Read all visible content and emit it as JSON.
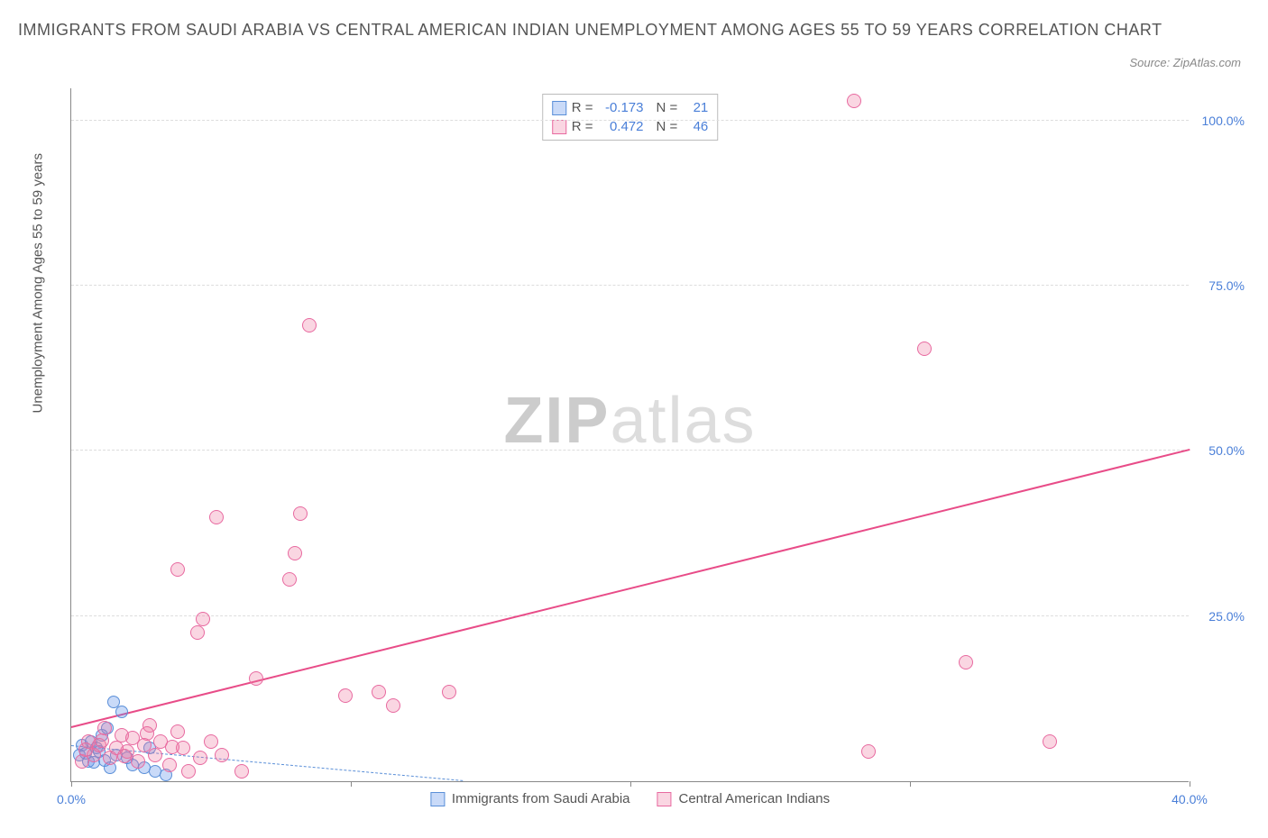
{
  "title": "IMMIGRANTS FROM SAUDI ARABIA VS CENTRAL AMERICAN INDIAN UNEMPLOYMENT AMONG AGES 55 TO 59 YEARS CORRELATION CHART",
  "source": "Source: ZipAtlas.com",
  "watermark_a": "ZIP",
  "watermark_b": "atlas",
  "chart": {
    "type": "scatter",
    "y_axis_label": "Unemployment Among Ages 55 to 59 years",
    "xlim": [
      0,
      40
    ],
    "ylim": [
      0,
      105
    ],
    "x_ticks": [
      0,
      10,
      20,
      30,
      40
    ],
    "x_tick_labels": [
      "0.0%",
      "",
      "",
      "",
      "40.0%"
    ],
    "y_ticks": [
      25,
      50,
      75,
      100
    ],
    "y_tick_labels": [
      "25.0%",
      "50.0%",
      "75.0%",
      "100.0%"
    ],
    "background_color": "#ffffff",
    "grid_color": "#dddddd",
    "axis_color": "#888888",
    "tick_label_color": "#4a7fd8",
    "title_color": "#555555",
    "series": [
      {
        "name": "Immigrants from Saudi Arabia",
        "marker_fill": "rgba(100,150,235,0.35)",
        "marker_stroke": "#5a8fd8",
        "marker_radius": 7,
        "trend_color": "#5a8fd8",
        "trend_dash": "6,4",
        "trend_width": 1.5,
        "trend_from": [
          0,
          5.3
        ],
        "trend_to": [
          14,
          0
        ],
        "corr_R": "-0.173",
        "corr_N": "21",
        "points": [
          [
            0.3,
            4.0
          ],
          [
            0.4,
            5.5
          ],
          [
            0.5,
            4.2
          ],
          [
            0.6,
            3.0
          ],
          [
            0.7,
            6.0
          ],
          [
            0.8,
            2.8
          ],
          [
            0.9,
            5.0
          ],
          [
            1.0,
            4.5
          ],
          [
            1.1,
            7.0
          ],
          [
            1.2,
            3.2
          ],
          [
            1.3,
            8.0
          ],
          [
            1.4,
            2.0
          ],
          [
            1.5,
            12.0
          ],
          [
            1.6,
            4.0
          ],
          [
            1.8,
            10.5
          ],
          [
            2.0,
            3.5
          ],
          [
            2.2,
            2.5
          ],
          [
            2.6,
            2.0
          ],
          [
            2.8,
            5.0
          ],
          [
            3.0,
            1.5
          ],
          [
            3.4,
            1.0
          ]
        ]
      },
      {
        "name": "Central American Indians",
        "marker_fill": "rgba(240,120,160,0.30)",
        "marker_stroke": "#e86aa0",
        "marker_radius": 8,
        "trend_color": "#e84c88",
        "trend_dash": "",
        "trend_width": 2,
        "trend_from": [
          0,
          8.0
        ],
        "trend_to": [
          40,
          50.0
        ],
        "corr_R": "0.472",
        "corr_N": "46",
        "points": [
          [
            0.4,
            3.0
          ],
          [
            0.6,
            6.0
          ],
          [
            0.8,
            4.0
          ],
          [
            1.0,
            5.5
          ],
          [
            1.2,
            8.0
          ],
          [
            1.4,
            3.5
          ],
          [
            1.6,
            5.0
          ],
          [
            1.8,
            7.0
          ],
          [
            2.0,
            4.5
          ],
          [
            2.2,
            6.5
          ],
          [
            2.4,
            3.0
          ],
          [
            2.6,
            5.5
          ],
          [
            2.8,
            8.5
          ],
          [
            3.0,
            4.0
          ],
          [
            3.2,
            6.0
          ],
          [
            3.5,
            2.5
          ],
          [
            3.8,
            7.5
          ],
          [
            4.0,
            5.0
          ],
          [
            4.2,
            1.5
          ],
          [
            4.6,
            3.5
          ],
          [
            5.0,
            6.0
          ],
          [
            5.4,
            4.0
          ],
          [
            6.1,
            1.5
          ],
          [
            4.5,
            22.5
          ],
          [
            4.7,
            24.5
          ],
          [
            3.8,
            32.0
          ],
          [
            5.2,
            40.0
          ],
          [
            6.6,
            15.5
          ],
          [
            7.8,
            30.5
          ],
          [
            8.0,
            34.5
          ],
          [
            8.2,
            40.5
          ],
          [
            8.5,
            69.0
          ],
          [
            9.8,
            13.0
          ],
          [
            11.0,
            13.5
          ],
          [
            11.5,
            11.5
          ],
          [
            13.5,
            13.5
          ],
          [
            28.0,
            103.0
          ],
          [
            30.5,
            65.5
          ],
          [
            28.5,
            4.5
          ],
          [
            32.0,
            18.0
          ],
          [
            35.0,
            6.0
          ],
          [
            0.5,
            4.8
          ],
          [
            1.1,
            6.2
          ],
          [
            1.9,
            3.8
          ],
          [
            2.7,
            7.2
          ],
          [
            3.6,
            5.2
          ]
        ]
      }
    ],
    "legend_labels": {
      "R": "R =",
      "N": "N ="
    }
  }
}
